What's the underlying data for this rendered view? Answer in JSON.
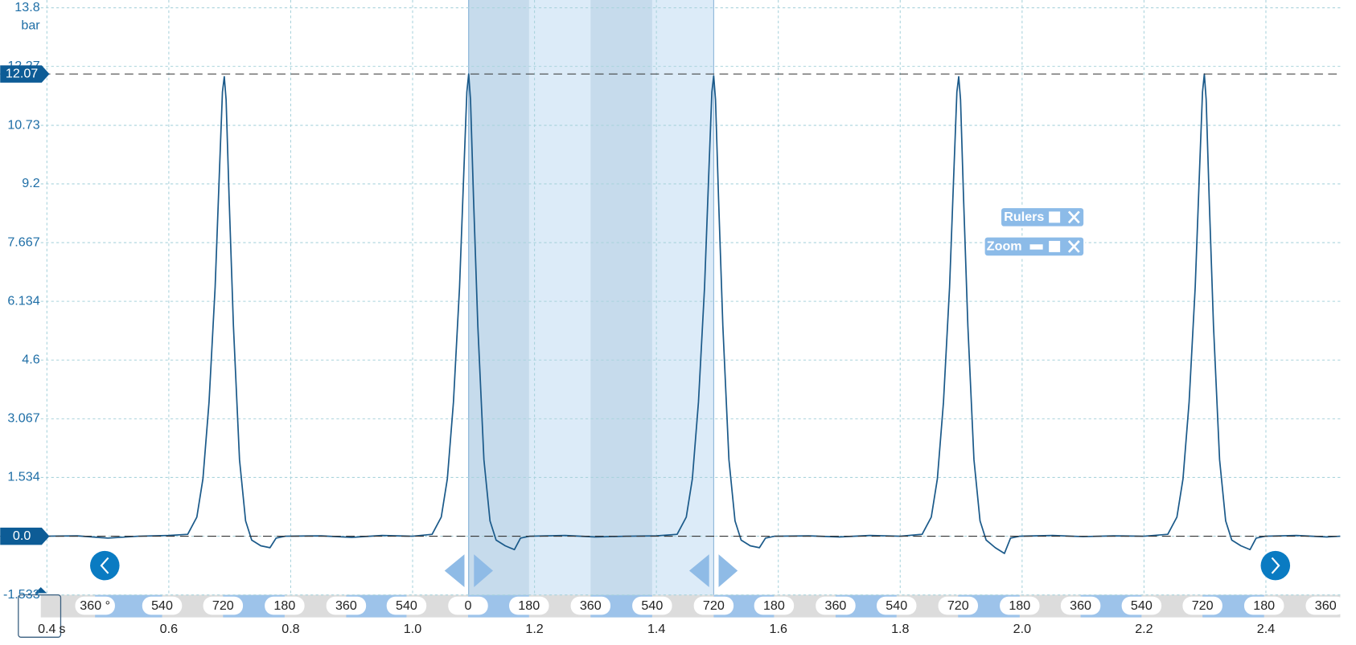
{
  "chart_data": {
    "type": "line",
    "y_unit": "bar",
    "x_unit": "s",
    "color": "#1b5a8a",
    "grid": true,
    "xlim": [
      0.39,
      2.522
    ],
    "ylim": [
      -1.533,
      13.8
    ],
    "xticks": [
      0.4,
      0.6,
      0.8,
      {
        "value": 1,
        "label": "1.0"
      },
      1.2,
      1.4,
      1.6,
      1.8,
      {
        "value": 2,
        "label": "2.0"
      },
      2.2,
      2.4
    ],
    "yticks": [
      13.8,
      12.27,
      10.73,
      9.2,
      7.667,
      6.134,
      4.6,
      3.067,
      1.534,
      {
        "value": 0,
        "label": "0.0"
      },
      -1.533
    ],
    "hlines": [
      12.07,
      {
        "value": 0,
        "label": "0.0"
      }
    ],
    "rulers": [
      1.092,
      1.494
    ],
    "angle_ticks": {
      "x": [
        0.479,
        0.589,
        0.689,
        0.79,
        0.891,
        0.99,
        1.091,
        1.191,
        1.292,
        1.393,
        1.494,
        1.593,
        1.694,
        1.794,
        1.895,
        1.996,
        2.096,
        2.196,
        2.296,
        2.397,
        2.498
      ],
      "labels": [
        "360 °",
        "540",
        "720",
        "180",
        "360",
        "540",
        "0",
        "180",
        "360",
        "540",
        "720",
        "180",
        "360",
        "540",
        "720",
        "180",
        "360",
        "540",
        "720",
        "180",
        "360"
      ]
    },
    "x": [
      0.39,
      0.45,
      0.5,
      0.55,
      0.6,
      0.631,
      0.646,
      0.656,
      0.666,
      0.676,
      0.683,
      0.688,
      0.691,
      0.694,
      0.699,
      0.706,
      0.716,
      0.726,
      0.736,
      0.751,
      0.766,
      0.776,
      0.791,
      0.85,
      0.9,
      0.95,
      1.0,
      1.032,
      1.047,
      1.057,
      1.067,
      1.077,
      1.084,
      1.089,
      1.092,
      1.095,
      1.1,
      1.107,
      1.117,
      1.127,
      1.137,
      1.152,
      1.167,
      1.177,
      1.192,
      1.25,
      1.3,
      1.35,
      1.4,
      1.434,
      1.449,
      1.459,
      1.469,
      1.479,
      1.486,
      1.491,
      1.494,
      1.497,
      1.502,
      1.509,
      1.519,
      1.529,
      1.539,
      1.554,
      1.569,
      1.579,
      1.594,
      1.65,
      1.7,
      1.75,
      1.8,
      1.836,
      1.851,
      1.861,
      1.871,
      1.881,
      1.888,
      1.893,
      1.896,
      1.899,
      1.904,
      1.911,
      1.921,
      1.931,
      1.941,
      1.956,
      1.971,
      1.981,
      1.996,
      2.05,
      2.1,
      2.15,
      2.2,
      2.239,
      2.254,
      2.264,
      2.274,
      2.284,
      2.291,
      2.296,
      2.299,
      2.302,
      2.307,
      2.314,
      2.324,
      2.334,
      2.344,
      2.359,
      2.374,
      2.384,
      2.399,
      2.45,
      2.5,
      2.522
    ],
    "values": [
      0.0,
      0.01,
      -0.05,
      0.0,
      0.02,
      0.05,
      0.5,
      1.5,
      3.5,
      6.5,
      9.5,
      11.6,
      12.0,
      11.4,
      8.8,
      5.5,
      2.0,
      0.4,
      -0.1,
      -0.25,
      -0.3,
      -0.05,
      0.0,
      0.01,
      -0.03,
      0.02,
      0.0,
      0.05,
      0.5,
      1.5,
      3.5,
      6.5,
      9.5,
      11.6,
      12.07,
      11.4,
      8.8,
      5.5,
      2.0,
      0.4,
      -0.1,
      -0.25,
      -0.35,
      -0.05,
      0.0,
      0.02,
      -0.02,
      0.0,
      0.01,
      0.05,
      0.5,
      1.5,
      3.5,
      6.5,
      9.5,
      11.6,
      12.02,
      11.4,
      8.8,
      5.5,
      2.0,
      0.4,
      -0.1,
      -0.25,
      -0.3,
      -0.05,
      0.0,
      0.01,
      -0.02,
      0.02,
      0.0,
      0.05,
      0.5,
      1.5,
      3.5,
      6.5,
      9.5,
      11.6,
      12.0,
      11.4,
      8.8,
      5.5,
      2.0,
      0.4,
      -0.1,
      -0.3,
      -0.45,
      -0.05,
      0.0,
      0.02,
      -0.01,
      0.01,
      0.0,
      0.05,
      0.5,
      1.5,
      3.5,
      6.5,
      9.5,
      11.6,
      12.07,
      11.4,
      8.8,
      5.5,
      2.0,
      0.4,
      -0.1,
      -0.25,
      -0.35,
      -0.05,
      0.0,
      0.02,
      -0.02,
      0.0
    ]
  },
  "widgets": [
    "Rulers",
    "Zoom"
  ]
}
